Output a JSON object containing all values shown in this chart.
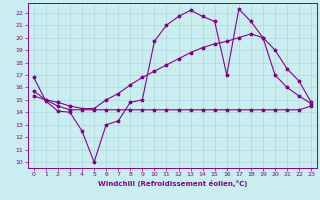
{
  "xlabel": "Windchill (Refroidissement éolien,°C)",
  "background_color": "#c8eef0",
  "grid_color": "#b0d8dc",
  "line_color": "#880088",
  "xlim": [
    -0.5,
    23.5
  ],
  "ylim": [
    9.5,
    22.8
  ],
  "xticks": [
    0,
    1,
    2,
    3,
    4,
    5,
    6,
    7,
    8,
    9,
    10,
    11,
    12,
    13,
    14,
    15,
    16,
    17,
    18,
    19,
    20,
    21,
    22,
    23
  ],
  "yticks": [
    10,
    11,
    12,
    13,
    14,
    15,
    16,
    17,
    18,
    19,
    20,
    21,
    22
  ],
  "line1_x": [
    0,
    1,
    2,
    3,
    4,
    5,
    6,
    7,
    8,
    9,
    10,
    11,
    12,
    13,
    14,
    15,
    16,
    17,
    18,
    19,
    20,
    21,
    22,
    23
  ],
  "line1_y": [
    16.8,
    14.9,
    14.1,
    14.0,
    12.5,
    10.0,
    13.0,
    13.3,
    14.8,
    15.0,
    19.7,
    21.0,
    21.7,
    22.2,
    21.7,
    21.3,
    17.0,
    22.3,
    21.3,
    20.0,
    17.0,
    16.0,
    15.3,
    14.7
  ],
  "line2_x": [
    0,
    1,
    2,
    3,
    4,
    5,
    6,
    7,
    8,
    9,
    10,
    11,
    12,
    13,
    14,
    15,
    16,
    17,
    18,
    19,
    20,
    21,
    22,
    23
  ],
  "line2_y": [
    15.7,
    15.0,
    14.5,
    14.2,
    14.2,
    14.2,
    14.2,
    14.2,
    14.2,
    14.2,
    14.2,
    14.2,
    14.2,
    14.2,
    14.2,
    14.2,
    14.2,
    14.2,
    14.2,
    14.2,
    14.2,
    14.2,
    14.2,
    14.5
  ],
  "line3_x": [
    0,
    1,
    2,
    3,
    4,
    5,
    6,
    7,
    8,
    9,
    10,
    11,
    12,
    13,
    14,
    15,
    16,
    17,
    18,
    19,
    20,
    21,
    22,
    23
  ],
  "line3_y": [
    15.3,
    15.0,
    14.8,
    14.5,
    14.3,
    14.3,
    15.0,
    15.5,
    16.2,
    16.8,
    17.3,
    17.8,
    18.3,
    18.8,
    19.2,
    19.5,
    19.7,
    20.0,
    20.3,
    20.0,
    19.0,
    17.5,
    16.5,
    14.8
  ]
}
